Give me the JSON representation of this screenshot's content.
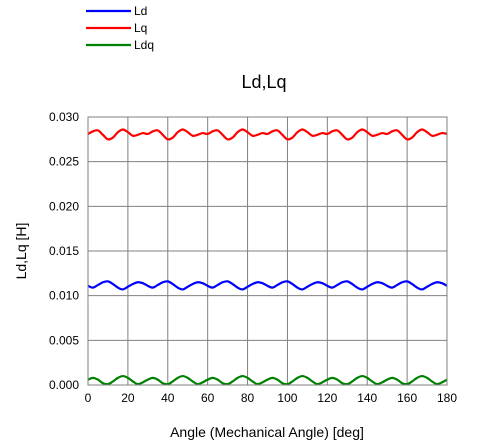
{
  "chart_data": {
    "type": "line",
    "title": "Ld,Lq",
    "xlabel": "Angle (Mechanical Angle) [deg]",
    "ylabel": "Ld,Lq [H]",
    "xlim": [
      0,
      180
    ],
    "ylim": [
      0,
      0.03
    ],
    "x_ticks": [
      0,
      20,
      40,
      60,
      80,
      100,
      120,
      140,
      160,
      180
    ],
    "x_tick_labels": [
      "0",
      "20",
      "40",
      "60",
      "80",
      "100",
      "120",
      "140",
      "160",
      "180"
    ],
    "y_ticks": [
      0,
      0.005,
      0.01,
      0.015,
      0.02,
      0.025,
      0.03
    ],
    "y_tick_labels": [
      "0.000",
      "0.005",
      "0.010",
      "0.015",
      "0.020",
      "0.025",
      "0.030"
    ],
    "grid": true,
    "legend_position": "top-left, above plot",
    "x": [
      0,
      2.5,
      5,
      7.5,
      10,
      12.5,
      15,
      17.5,
      20,
      22.5,
      25,
      27.5,
      30,
      32.5,
      35,
      37.5,
      40,
      42.5,
      45,
      47.5,
      50,
      52.5,
      55,
      57.5,
      60,
      62.5,
      65,
      67.5,
      70,
      72.5,
      75,
      77.5,
      80,
      82.5,
      85,
      87.5,
      90,
      92.5,
      95,
      97.5,
      100,
      102.5,
      105,
      107.5,
      110,
      112.5,
      115,
      117.5,
      120,
      122.5,
      125,
      127.5,
      130,
      132.5,
      135,
      137.5,
      140,
      142.5,
      145,
      147.5,
      150,
      152.5,
      155,
      157.5,
      160,
      162.5,
      165,
      167.5,
      170,
      172.5,
      175,
      177.5,
      180
    ],
    "series": [
      {
        "name": "Ld",
        "color": "#0000ff",
        "values": [
          0.0111,
          0.0109,
          0.0112,
          0.0115,
          0.0116,
          0.0113,
          0.0109,
          0.0107,
          0.011,
          0.0113,
          0.0115,
          0.0114,
          0.0111,
          0.0109,
          0.0112,
          0.0115,
          0.0116,
          0.0113,
          0.0109,
          0.0107,
          0.011,
          0.0113,
          0.0115,
          0.0114,
          0.0111,
          0.0109,
          0.0112,
          0.0115,
          0.0116,
          0.0113,
          0.0109,
          0.0107,
          0.011,
          0.0113,
          0.0115,
          0.0114,
          0.0111,
          0.0109,
          0.0112,
          0.0115,
          0.0116,
          0.0113,
          0.0109,
          0.0107,
          0.011,
          0.0113,
          0.0115,
          0.0114,
          0.0111,
          0.0109,
          0.0112,
          0.0115,
          0.0116,
          0.0113,
          0.0109,
          0.0107,
          0.011,
          0.0113,
          0.0115,
          0.0114,
          0.0111,
          0.0109,
          0.0112,
          0.0115,
          0.0116,
          0.0113,
          0.0109,
          0.0107,
          0.011,
          0.0113,
          0.0115,
          0.0114,
          0.0111
        ]
      },
      {
        "name": "Lq",
        "color": "#ff0000",
        "values": [
          0.0281,
          0.0284,
          0.0285,
          0.028,
          0.0275,
          0.0277,
          0.0283,
          0.0286,
          0.0283,
          0.0279,
          0.028,
          0.0282,
          0.0281,
          0.0284,
          0.0285,
          0.028,
          0.0275,
          0.0277,
          0.0283,
          0.0286,
          0.0283,
          0.0279,
          0.028,
          0.0282,
          0.0281,
          0.0284,
          0.0285,
          0.028,
          0.0275,
          0.0277,
          0.0283,
          0.0286,
          0.0283,
          0.0279,
          0.028,
          0.0282,
          0.0281,
          0.0284,
          0.0285,
          0.028,
          0.0275,
          0.0277,
          0.0283,
          0.0286,
          0.0283,
          0.0279,
          0.028,
          0.0282,
          0.0281,
          0.0284,
          0.0285,
          0.028,
          0.0275,
          0.0277,
          0.0283,
          0.0286,
          0.0283,
          0.0279,
          0.028,
          0.0282,
          0.0281,
          0.0284,
          0.0285,
          0.028,
          0.0275,
          0.0277,
          0.0283,
          0.0286,
          0.0283,
          0.0279,
          0.028,
          0.0282,
          0.0281
        ]
      },
      {
        "name": "Ldq",
        "color": "#008000",
        "values": [
          0.0006,
          0.0008,
          0.0006,
          0.0002,
          0.0001,
          0.0004,
          0.0008,
          0.001,
          0.0008,
          0.0004,
          0.0001,
          0.0003,
          0.0006,
          0.0008,
          0.0006,
          0.0002,
          0.0001,
          0.0004,
          0.0008,
          0.001,
          0.0008,
          0.0004,
          0.0001,
          0.0003,
          0.0006,
          0.0008,
          0.0006,
          0.0002,
          0.0001,
          0.0004,
          0.0008,
          0.001,
          0.0008,
          0.0004,
          0.0001,
          0.0003,
          0.0006,
          0.0008,
          0.0006,
          0.0002,
          0.0001,
          0.0004,
          0.0008,
          0.001,
          0.0008,
          0.0004,
          0.0001,
          0.0003,
          0.0006,
          0.0008,
          0.0006,
          0.0002,
          0.0001,
          0.0004,
          0.0008,
          0.001,
          0.0008,
          0.0004,
          0.0001,
          0.0003,
          0.0006,
          0.0008,
          0.0006,
          0.0002,
          0.0001,
          0.0004,
          0.0008,
          0.001,
          0.0008,
          0.0004,
          0.0001,
          0.0003,
          0.0006
        ]
      }
    ]
  }
}
